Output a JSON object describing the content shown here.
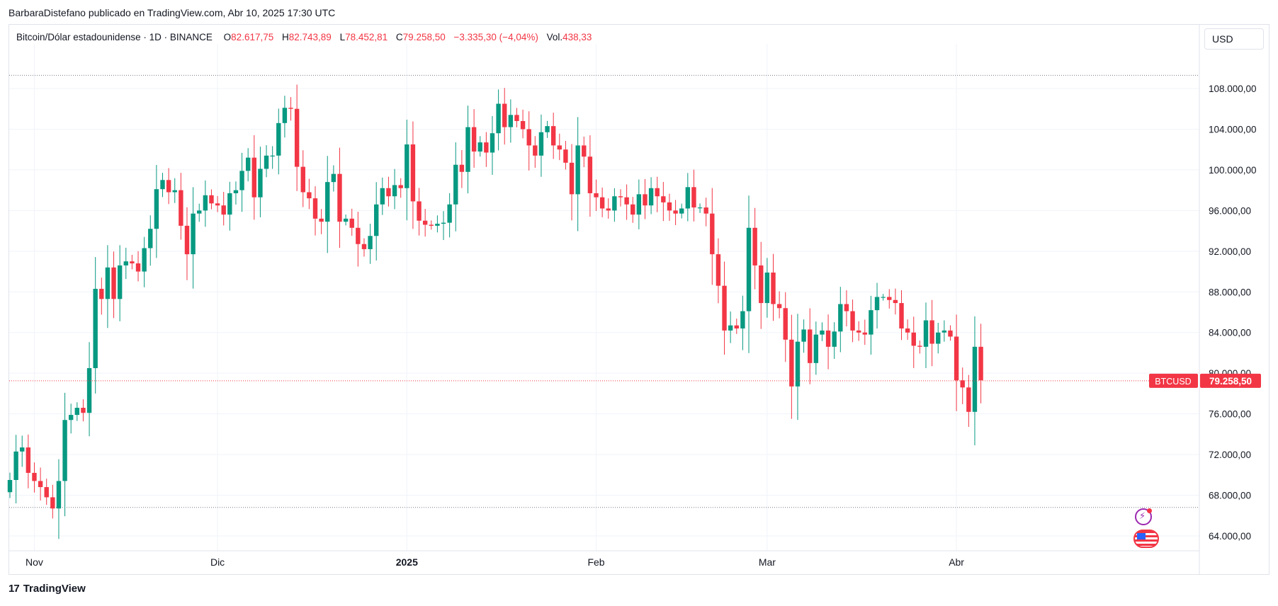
{
  "attribution": "BarbaraDistefano publicado en TradingView.com, Abr 10, 2025 17:30 UTC",
  "legend": {
    "symbol": "Bitcoin/Dólar estadounidense · 1D · BINANCE",
    "o_label": "O",
    "o_value": "82.617,75",
    "h_label": "H",
    "h_value": "82.743,89",
    "l_label": "L",
    "l_value": "78.452,81",
    "c_label": "C",
    "c_value": "79.258,50",
    "change": "−3.335,30 (−4,04%)",
    "vol_label": "Vol.",
    "vol_value": "438,33"
  },
  "currency": "USD",
  "last_price": {
    "ticker": "BTCUSD",
    "value": "79.258,50"
  },
  "footer": {
    "brand": "TradingView",
    "logo_mark": "17"
  },
  "colors": {
    "up": "#089981",
    "down": "#f23645",
    "grid": "#f0f3fa",
    "text": "#131722"
  },
  "icons": {
    "event_1": "energy-event-icon",
    "event_2": "us-flag-event-icon"
  },
  "chart_data": {
    "type": "candlestick",
    "title": "",
    "ylim": [
      62000,
      111000
    ],
    "yticks": [
      {
        "v": 64000,
        "label": "64.000,00"
      },
      {
        "v": 68000,
        "label": "68.000,00"
      },
      {
        "v": 72000,
        "label": "72.000,00"
      },
      {
        "v": 76000,
        "label": "76.000,00"
      },
      {
        "v": 80000,
        "label": "80.000,00"
      },
      {
        "v": 84000,
        "label": "84.000,00"
      },
      {
        "v": 88000,
        "label": "88.000,00"
      },
      {
        "v": 92000,
        "label": "92.000,00"
      },
      {
        "v": 96000,
        "label": "96.000,00"
      },
      {
        "v": 100000,
        "label": "100.000,00"
      },
      {
        "v": 104000,
        "label": "104.000,00"
      },
      {
        "v": 108000,
        "label": "108.000,00"
      }
    ],
    "xticks": [
      {
        "label": "Nov",
        "index": 4,
        "bold": false
      },
      {
        "label": "Dic",
        "index": 34,
        "bold": false
      },
      {
        "label": "2025",
        "index": 65,
        "bold": true
      },
      {
        "label": "Feb",
        "index": 96,
        "bold": false
      },
      {
        "label": "Mar",
        "index": 124,
        "bold": false
      },
      {
        "label": "Abr",
        "index": 155,
        "bold": false
      }
    ],
    "dotted_levels": [
      109300,
      66800
    ],
    "last_close": 79258.5,
    "closes": [
      69500,
      72300,
      72700,
      70200,
      69400,
      68800,
      67800,
      66700,
      69400,
      75400,
      75900,
      76600,
      76100,
      80500,
      88300,
      87300,
      90400,
      87300,
      90600,
      91000,
      90800,
      90000,
      92300,
      94200,
      98100,
      99000,
      97800,
      98000,
      94500,
      91700,
      95700,
      96000,
      97500,
      96700,
      96500,
      95600,
      97700,
      98000,
      99900,
      101200,
      97300,
      100100,
      101400,
      101400,
      104600,
      106100,
      106000,
      100300,
      97800,
      97200,
      95200,
      94900,
      98800,
      99600,
      94900,
      95200,
      94300,
      92700,
      92200,
      93500,
      96600,
      98200,
      97400,
      98500,
      98200,
      102500,
      96900,
      95000,
      94600,
      94500,
      94700,
      94800,
      96600,
      100500,
      99800,
      104200,
      101800,
      102700,
      101700,
      103600,
      106500,
      104200,
      105400,
      104800,
      104000,
      102400,
      101400,
      103700,
      104300,
      102400,
      102000,
      100700,
      97600,
      102400,
      101300,
      97700,
      97300,
      96200,
      96000,
      97400,
      97300,
      96600,
      95600,
      97600,
      96500,
      98200,
      97400,
      96800,
      96000,
      95700,
      96200,
      98300,
      96300,
      96300,
      95700,
      91700,
      88600,
      84200,
      84700,
      84400,
      86100,
      94300,
      90600,
      86900,
      89900,
      86800,
      86400,
      83300,
      78700,
      83100,
      84300,
      81000,
      83800,
      84200,
      82600,
      84100,
      86800,
      86100,
      84200,
      84000,
      83800,
      86200,
      87500,
      87500,
      87200,
      86900,
      84400,
      84000,
      82700,
      82600,
      85200,
      82900,
      84000,
      84200,
      83600,
      79300,
      78600,
      76200,
      82600,
      79300
    ]
  }
}
